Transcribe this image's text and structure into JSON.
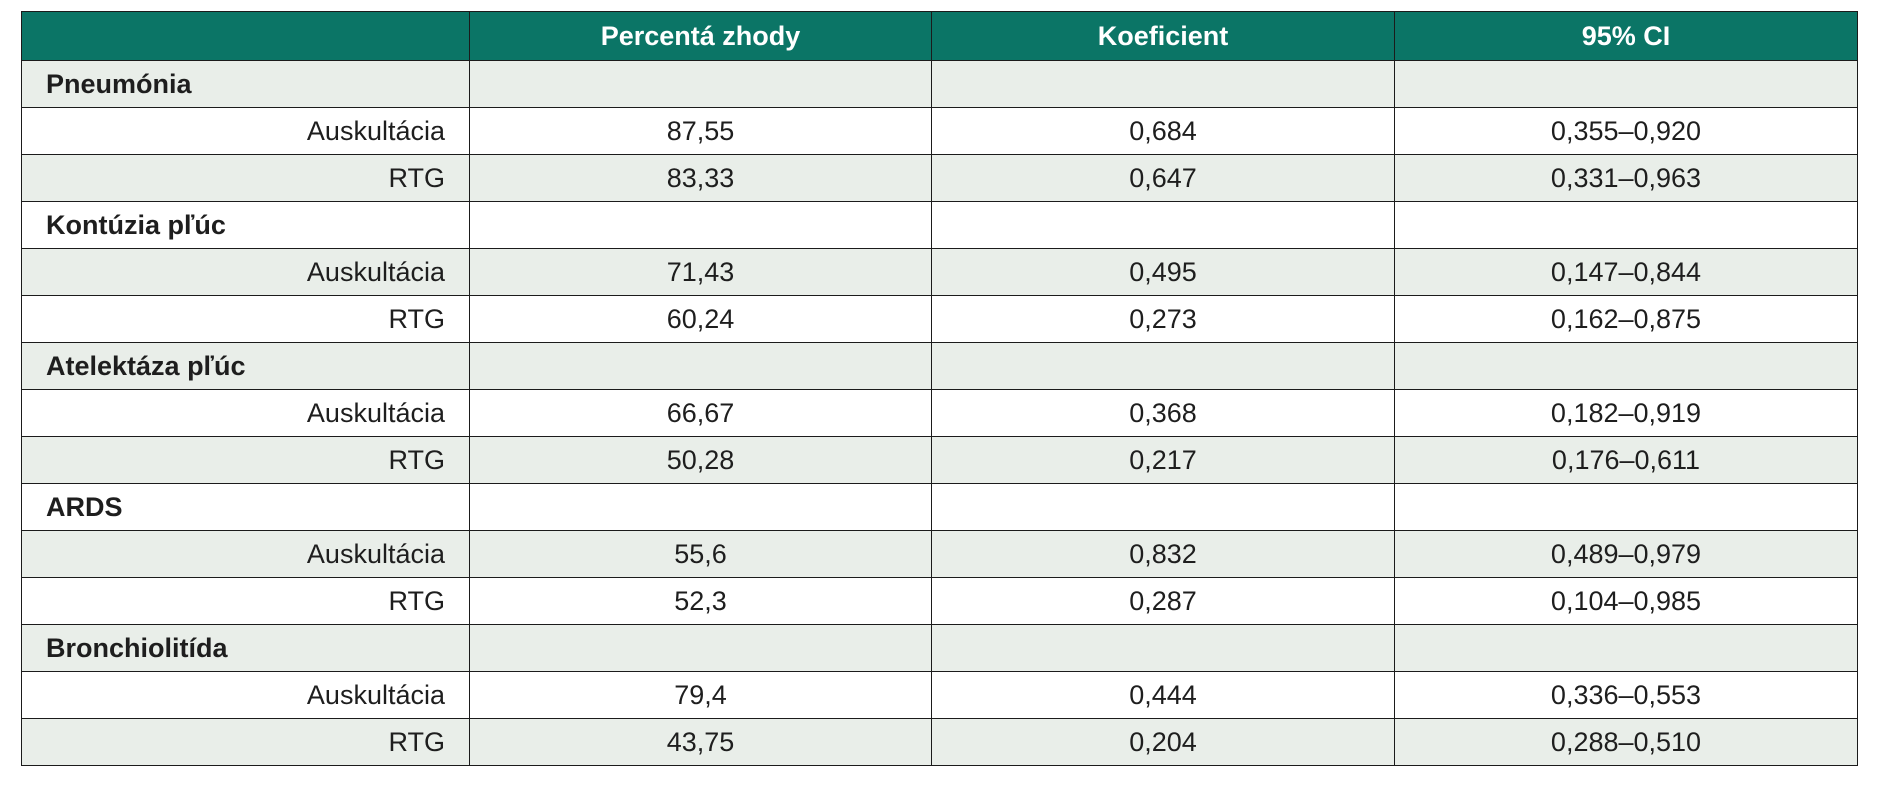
{
  "table": {
    "headers": [
      "",
      "Percentá zhody",
      "Koeficient",
      "95% CI"
    ],
    "groups": [
      {
        "name": "Pneumónia",
        "rows": [
          {
            "method": "Auskultácia",
            "percent": "87,55",
            "coefficient": "0,684",
            "ci": "0,355–0,920"
          },
          {
            "method": "RTG",
            "percent": "83,33",
            "coefficient": "0,647",
            "ci": "0,331–0,963"
          }
        ]
      },
      {
        "name": "Kontúzia pľúc",
        "rows": [
          {
            "method": "Auskultácia",
            "percent": "71,43",
            "coefficient": "0,495",
            "ci": "0,147–0,844"
          },
          {
            "method": "RTG",
            "percent": "60,24",
            "coefficient": "0,273",
            "ci": "0,162–0,875"
          }
        ]
      },
      {
        "name": "Atelektáza pľúc",
        "rows": [
          {
            "method": "Auskultácia",
            "percent": "66,67",
            "coefficient": "0,368",
            "ci": "0,182–0,919"
          },
          {
            "method": "RTG",
            "percent": "50,28",
            "coefficient": "0,217",
            "ci": "0,176–0,611"
          }
        ]
      },
      {
        "name": "ARDS",
        "rows": [
          {
            "method": "Auskultácia",
            "percent": "55,6",
            "coefficient": "0,832",
            "ci": "0,489–0,979"
          },
          {
            "method": "RTG",
            "percent": "52,3",
            "coefficient": "0,287",
            "ci": "0,104–0,985"
          }
        ]
      },
      {
        "name": "Bronchiolitída",
        "rows": [
          {
            "method": "Auskultácia",
            "percent": "79,4",
            "coefficient": "0,444",
            "ci": "0,336–0,553"
          },
          {
            "method": "RTG",
            "percent": "43,75",
            "coefficient": "0,204",
            "ci": "0,288–0,510"
          }
        ]
      }
    ]
  },
  "colors": {
    "header_bg": "#0b7566",
    "header_text": "#ffffff",
    "shaded_row": "#e9eee9",
    "border": "#1b1b1b"
  }
}
